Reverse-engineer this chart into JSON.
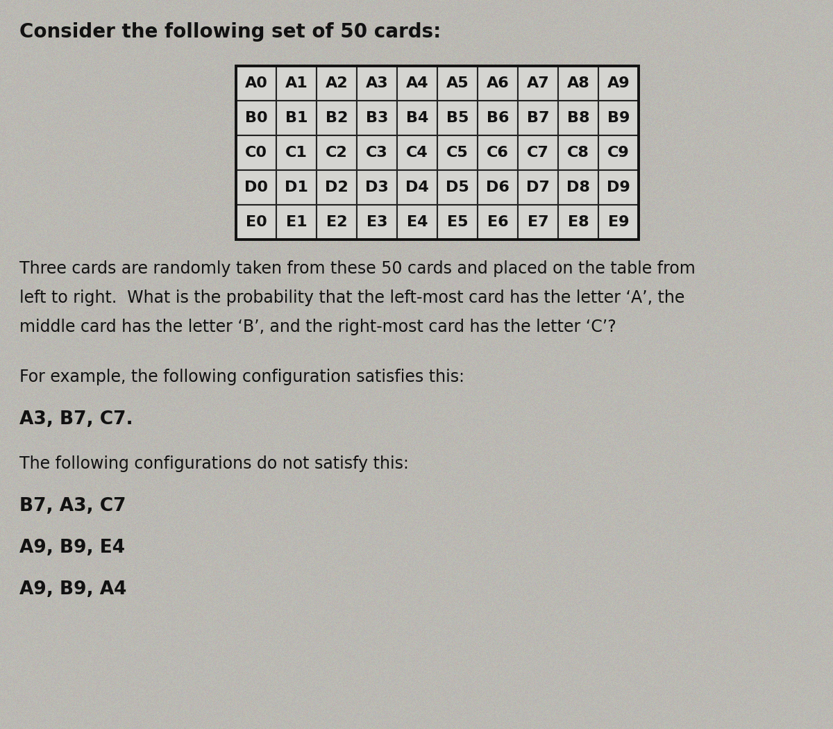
{
  "title": "Consider the following set of 50 cards:",
  "table_rows": [
    [
      "A0",
      "A1",
      "A2",
      "A3",
      "A4",
      "A5",
      "A6",
      "A7",
      "A8",
      "A9"
    ],
    [
      "B0",
      "B1",
      "B2",
      "B3",
      "B4",
      "B5",
      "B6",
      "B7",
      "B8",
      "B9"
    ],
    [
      "C0",
      "C1",
      "C2",
      "C3",
      "C4",
      "C5",
      "C6",
      "C7",
      "C8",
      "C9"
    ],
    [
      "D0",
      "D1",
      "D2",
      "D3",
      "D4",
      "D5",
      "D6",
      "D7",
      "D8",
      "D9"
    ],
    [
      "E0",
      "E1",
      "E2",
      "E3",
      "E4",
      "E5",
      "E6",
      "E7",
      "E8",
      "E9"
    ]
  ],
  "paragraph_lines": [
    "Three cards are randomly taken from these 50 cards and placed on the table from",
    "left to right.  What is the probability that the left-most card has the letter ‘A’, the",
    "middle card has the letter ‘B’, and the right-most card has the letter ‘C’?"
  ],
  "example_intro": "For example, the following configuration satisfies this:",
  "example_good": "A3, B7, C7.",
  "not_satisfy_intro": "The following configurations do not satisfy this:",
  "not_satisfy_1": "B7, A3, C7",
  "not_satisfy_2": "A9, B9, E4",
  "not_satisfy_3": "A9, B9, A4",
  "bg_color": "#b8b8b4",
  "cell_color": "#d4d4d0",
  "text_color": "#111111",
  "title_fontsize": 20,
  "body_fontsize": 17,
  "example_fontsize": 19,
  "table_fontsize": 16,
  "noise_seed": 42
}
